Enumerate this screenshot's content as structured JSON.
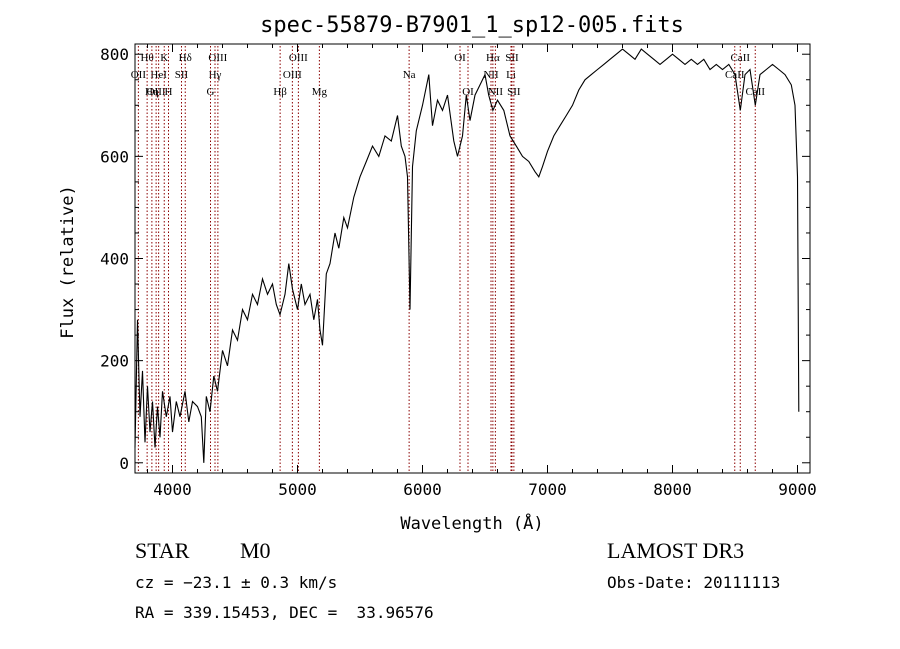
{
  "chart_data": {
    "type": "line",
    "title": "spec-55879-B7901_1_sp12-005.fits",
    "xlabel": "Wavelength (Å)",
    "ylabel": "Flux (relative)",
    "xlim": [
      3700,
      9100
    ],
    "ylim": [
      -20,
      820
    ],
    "x_ticks": [
      4000,
      5000,
      6000,
      7000,
      8000,
      9000
    ],
    "y_ticks": [
      0,
      200,
      400,
      600,
      800
    ],
    "grid": false,
    "line_color": "#000000",
    "marker_color": "#8b0000",
    "series": [
      {
        "points": [
          [
            3700,
            30
          ],
          [
            3720,
            280
          ],
          [
            3740,
            90
          ],
          [
            3760,
            180
          ],
          [
            3780,
            40
          ],
          [
            3800,
            150
          ],
          [
            3820,
            60
          ],
          [
            3840,
            120
          ],
          [
            3860,
            30
          ],
          [
            3880,
            110
          ],
          [
            3900,
            50
          ],
          [
            3920,
            140
          ],
          [
            3950,
            90
          ],
          [
            3980,
            130
          ],
          [
            4000,
            60
          ],
          [
            4030,
            120
          ],
          [
            4060,
            90
          ],
          [
            4100,
            140
          ],
          [
            4130,
            80
          ],
          [
            4160,
            120
          ],
          [
            4200,
            110
          ],
          [
            4230,
            90
          ],
          [
            4250,
            0
          ],
          [
            4270,
            130
          ],
          [
            4300,
            100
          ],
          [
            4330,
            170
          ],
          [
            4360,
            140
          ],
          [
            4400,
            220
          ],
          [
            4440,
            190
          ],
          [
            4480,
            260
          ],
          [
            4520,
            240
          ],
          [
            4560,
            300
          ],
          [
            4600,
            280
          ],
          [
            4640,
            330
          ],
          [
            4680,
            310
          ],
          [
            4720,
            360
          ],
          [
            4760,
            330
          ],
          [
            4800,
            350
          ],
          [
            4830,
            310
          ],
          [
            4860,
            290
          ],
          [
            4900,
            330
          ],
          [
            4930,
            390
          ],
          [
            4960,
            340
          ],
          [
            5000,
            300
          ],
          [
            5030,
            350
          ],
          [
            5060,
            310
          ],
          [
            5100,
            330
          ],
          [
            5130,
            280
          ],
          [
            5160,
            320
          ],
          [
            5180,
            260
          ],
          [
            5200,
            230
          ],
          [
            5230,
            370
          ],
          [
            5260,
            390
          ],
          [
            5300,
            450
          ],
          [
            5330,
            420
          ],
          [
            5370,
            480
          ],
          [
            5400,
            460
          ],
          [
            5450,
            520
          ],
          [
            5500,
            560
          ],
          [
            5550,
            590
          ],
          [
            5600,
            620
          ],
          [
            5650,
            600
          ],
          [
            5700,
            640
          ],
          [
            5750,
            630
          ],
          [
            5800,
            680
          ],
          [
            5830,
            620
          ],
          [
            5860,
            600
          ],
          [
            5880,
            560
          ],
          [
            5900,
            300
          ],
          [
            5920,
            580
          ],
          [
            5950,
            650
          ],
          [
            6000,
            700
          ],
          [
            6050,
            760
          ],
          [
            6080,
            660
          ],
          [
            6120,
            710
          ],
          [
            6160,
            690
          ],
          [
            6200,
            720
          ],
          [
            6250,
            630
          ],
          [
            6280,
            600
          ],
          [
            6320,
            640
          ],
          [
            6350,
            720
          ],
          [
            6380,
            670
          ],
          [
            6420,
            720
          ],
          [
            6460,
            740
          ],
          [
            6500,
            760
          ],
          [
            6530,
            720
          ],
          [
            6563,
            690
          ],
          [
            6600,
            710
          ],
          [
            6650,
            690
          ],
          [
            6700,
            640
          ],
          [
            6750,
            620
          ],
          [
            6800,
            600
          ],
          [
            6850,
            590
          ],
          [
            6900,
            570
          ],
          [
            6930,
            560
          ],
          [
            6960,
            580
          ],
          [
            7000,
            610
          ],
          [
            7050,
            640
          ],
          [
            7100,
            660
          ],
          [
            7150,
            680
          ],
          [
            7200,
            700
          ],
          [
            7250,
            730
          ],
          [
            7300,
            750
          ],
          [
            7350,
            760
          ],
          [
            7400,
            770
          ],
          [
            7450,
            780
          ],
          [
            7500,
            790
          ],
          [
            7550,
            800
          ],
          [
            7600,
            810
          ],
          [
            7650,
            800
          ],
          [
            7700,
            790
          ],
          [
            7750,
            810
          ],
          [
            7800,
            800
          ],
          [
            7850,
            790
          ],
          [
            7900,
            780
          ],
          [
            7950,
            790
          ],
          [
            8000,
            800
          ],
          [
            8050,
            790
          ],
          [
            8100,
            780
          ],
          [
            8150,
            790
          ],
          [
            8200,
            780
          ],
          [
            8250,
            790
          ],
          [
            8300,
            770
          ],
          [
            8350,
            780
          ],
          [
            8400,
            770
          ],
          [
            8450,
            780
          ],
          [
            8500,
            760
          ],
          [
            8542,
            690
          ],
          [
            8580,
            760
          ],
          [
            8620,
            770
          ],
          [
            8662,
            700
          ],
          [
            8700,
            760
          ],
          [
            8750,
            770
          ],
          [
            8800,
            780
          ],
          [
            8850,
            770
          ],
          [
            8900,
            760
          ],
          [
            8950,
            740
          ],
          [
            8980,
            700
          ],
          [
            9000,
            560
          ],
          [
            9010,
            100
          ]
        ]
      }
    ],
    "lines": [
      {
        "label": "Hθ",
        "row": 1,
        "x": 3797
      },
      {
        "label": "OII",
        "row": 2,
        "x": 3727
      },
      {
        "label": "OIII",
        "row": 3,
        "x": 3869
      },
      {
        "label": "K",
        "row": 1,
        "x": 3934
      },
      {
        "label": "HeI",
        "row": 2,
        "x": 3889
      },
      {
        "label": "Hη",
        "row": 3,
        "x": 3835
      },
      {
        "label": "SII",
        "row": 2,
        "x": 4072
      },
      {
        "label": "H",
        "row": 3,
        "x": 3968
      },
      {
        "label": "Hδ",
        "row": 1,
        "x": 4102
      },
      {
        "label": "OIII",
        "row": 1,
        "x": 4363
      },
      {
        "label": "Hγ",
        "row": 2,
        "x": 4340
      },
      {
        "label": "G",
        "row": 3,
        "x": 4304
      },
      {
        "label": "Hβ",
        "row": 3,
        "x": 4861
      },
      {
        "label": "OIII",
        "row": 1,
        "x": 5007
      },
      {
        "label": "OIII",
        "row": 2,
        "x": 4959
      },
      {
        "label": "Mg",
        "row": 3,
        "x": 5175
      },
      {
        "label": "Na",
        "row": 2,
        "x": 5893
      },
      {
        "label": "OI",
        "row": 1,
        "x": 6300
      },
      {
        "label": "OI",
        "row": 3,
        "x": 6364
      },
      {
        "label": "Hα",
        "row": 1,
        "x": 6563
      },
      {
        "label": "NII",
        "row": 2,
        "x": 6548
      },
      {
        "label": "NII",
        "row": 3,
        "x": 6583
      },
      {
        "label": "SII",
        "row": 1,
        "x": 6716
      },
      {
        "label": "Li",
        "row": 2,
        "x": 6708
      },
      {
        "label": "SII",
        "row": 3,
        "x": 6731
      },
      {
        "label": "CaII",
        "row": 1,
        "x": 8542
      },
      {
        "label": "CaII",
        "row": 2,
        "x": 8498
      },
      {
        "label": "CaII",
        "row": 3,
        "x": 8662
      }
    ]
  },
  "info": {
    "class": "STAR",
    "subclass": "M0",
    "survey": "LAMOST DR3",
    "cz": "cz = −23.1 ± 0.3 km/s",
    "obs_date": "Obs-Date: 20111113",
    "coords": "RA = 339.15453, DEC =  33.96576"
  }
}
